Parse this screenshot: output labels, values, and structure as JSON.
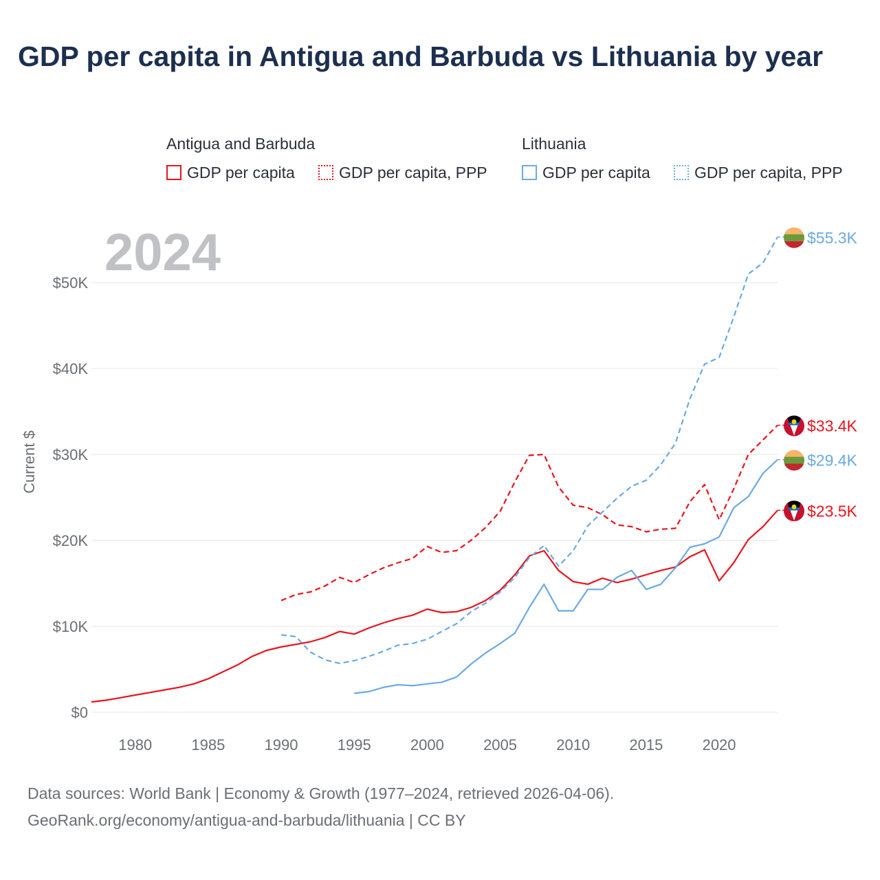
{
  "title": "GDP per capita in Antigua and Barbuda vs Lithuania by year",
  "legend": {
    "groups": [
      {
        "name": "Antigua and Barbuda",
        "items": [
          {
            "label": "GDP per capita",
            "style": "solid",
            "color": "#e8141c"
          },
          {
            "label": "GDP per capita, PPP",
            "style": "dotted",
            "color": "#e8141c"
          }
        ]
      },
      {
        "name": "Lithuania",
        "items": [
          {
            "label": "GDP per capita",
            "style": "solid",
            "color": "#6aa9e4"
          },
          {
            "label": "GDP per capita, PPP",
            "style": "dotted",
            "color": "#6aa9e4"
          }
        ]
      }
    ]
  },
  "footer": {
    "line1": "Data sources: World Bank | Economy & Growth (1977–2024, retrieved 2026-04-06).",
    "line2": "GeoRank.org/economy/antigua-and-barbuda/lithuania | CC BY"
  },
  "chart_data": {
    "type": "line",
    "year_watermark": "2024",
    "ylabel": "Current $",
    "xlim": [
      1977,
      2024
    ],
    "ylim": [
      0,
      55300
    ],
    "x_ticks": [
      1980,
      1985,
      1990,
      1995,
      2000,
      2005,
      2010,
      2015,
      2020
    ],
    "x_tick_labels": [
      "1980",
      "1985",
      "1990",
      "1995",
      "2000",
      "2005",
      "2010",
      "2015",
      "2020"
    ],
    "y_ticks": [
      0,
      10000,
      20000,
      30000,
      40000,
      50000
    ],
    "y_tick_labels": [
      "$0",
      "$10K",
      "$20K",
      "$30K",
      "$40K",
      "$50K"
    ],
    "series": [
      {
        "name": "Antigua and Barbuda GDP per capita",
        "country": "antigua",
        "color": "#e8141c",
        "dash": "solid",
        "end_label": "$23.5K",
        "x": [
          1977,
          1978,
          1979,
          1980,
          1981,
          1982,
          1983,
          1984,
          1985,
          1986,
          1987,
          1988,
          1989,
          1990,
          1991,
          1992,
          1993,
          1994,
          1995,
          1996,
          1997,
          1998,
          1999,
          2000,
          2001,
          2002,
          2003,
          2004,
          2005,
          2006,
          2007,
          2008,
          2009,
          2010,
          2011,
          2012,
          2013,
          2014,
          2015,
          2016,
          2017,
          2018,
          2019,
          2020,
          2021,
          2022,
          2023,
          2024
        ],
        "values": [
          1200,
          1400,
          1700,
          2000,
          2300,
          2600,
          2900,
          3300,
          3900,
          4700,
          5500,
          6500,
          7200,
          7600,
          7900,
          8200,
          8700,
          9400,
          9100,
          9800,
          10400,
          10900,
          11300,
          12000,
          11600,
          11700,
          12200,
          13000,
          14200,
          16000,
          18200,
          18800,
          16500,
          15200,
          14900,
          15600,
          15100,
          15500,
          16000,
          16500,
          16900,
          18100,
          18900,
          15300,
          17400,
          20100,
          21600,
          23500
        ]
      },
      {
        "name": "Antigua and Barbuda GDP per capita, PPP",
        "country": "antigua",
        "color": "#e8141c",
        "dash": "dashed",
        "end_label": "$33.4K",
        "x": [
          1990,
          1991,
          1992,
          1993,
          1994,
          1995,
          1996,
          1997,
          1998,
          1999,
          2000,
          2001,
          2002,
          2003,
          2004,
          2005,
          2006,
          2007,
          2008,
          2009,
          2010,
          2011,
          2012,
          2013,
          2014,
          2015,
          2016,
          2017,
          2018,
          2019,
          2020,
          2021,
          2022,
          2023,
          2024
        ],
        "values": [
          13000,
          13700,
          14000,
          14700,
          15700,
          15100,
          16000,
          16800,
          17400,
          17900,
          19300,
          18600,
          18800,
          20000,
          21500,
          23400,
          26800,
          29900,
          30000,
          26200,
          24100,
          23800,
          23000,
          21800,
          21600,
          21000,
          21300,
          21400,
          24500,
          26500,
          22400,
          26000,
          30000,
          31700,
          33400
        ]
      },
      {
        "name": "Lithuania GDP per capita",
        "country": "lithuania",
        "color": "#6aa9e4",
        "dash": "solid",
        "end_label": "$29.4K",
        "x": [
          1995,
          1996,
          1997,
          1998,
          1999,
          2000,
          2001,
          2002,
          2003,
          2004,
          2005,
          2006,
          2007,
          2008,
          2009,
          2010,
          2011,
          2012,
          2013,
          2014,
          2015,
          2016,
          2017,
          2018,
          2019,
          2020,
          2021,
          2022,
          2023,
          2024
        ],
        "values": [
          2200,
          2400,
          2900,
          3200,
          3100,
          3300,
          3500,
          4100,
          5600,
          6900,
          8000,
          9200,
          12200,
          14900,
          11800,
          11800,
          14300,
          14300,
          15700,
          16500,
          14300,
          14900,
          16800,
          19200,
          19600,
          20400,
          23800,
          25100,
          27800,
          29400
        ]
      },
      {
        "name": "Lithuania GDP per capita, PPP",
        "country": "lithuania",
        "color": "#6aa9e4",
        "dash": "dashed",
        "end_label": "$55.3K",
        "x": [
          1990,
          1991,
          1992,
          1993,
          1994,
          1995,
          1996,
          1997,
          1998,
          1999,
          2000,
          2001,
          2002,
          2003,
          2004,
          2005,
          2006,
          2007,
          2008,
          2009,
          2010,
          2011,
          2012,
          2013,
          2014,
          2015,
          2016,
          2017,
          2018,
          2019,
          2020,
          2021,
          2022,
          2023,
          2024
        ],
        "values": [
          9000,
          8800,
          7000,
          6100,
          5700,
          6000,
          6500,
          7100,
          7800,
          8000,
          8500,
          9400,
          10300,
          11700,
          12700,
          14000,
          15700,
          18000,
          19400,
          17000,
          18800,
          21700,
          23300,
          24900,
          26300,
          27000,
          28800,
          31300,
          36500,
          40500,
          41300,
          46000,
          51000,
          52300,
          55300
        ]
      }
    ]
  }
}
